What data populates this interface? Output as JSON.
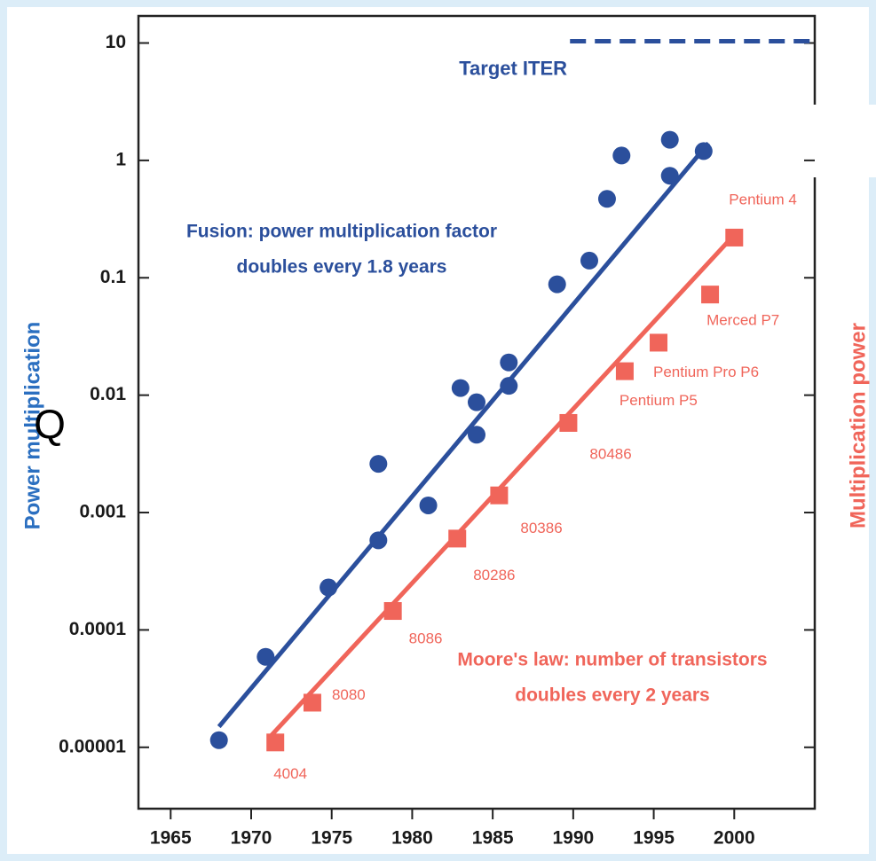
{
  "chart_data": {
    "type": "scatter",
    "log_y": true,
    "xlim": [
      1963,
      2005
    ],
    "ylim": [
      3e-06,
      17
    ],
    "xticks": [
      1965,
      1970,
      1975,
      1980,
      1985,
      1990,
      1995,
      2000
    ],
    "yticks": [
      10,
      1,
      0.1,
      0.01,
      0.001,
      0.0001,
      1e-05
    ],
    "ylabel": "Power multiplication",
    "y_symbol": "Q",
    "y2label": "Multiplication power",
    "series": [
      {
        "color": "#2b4f9c",
        "marker": "circle",
        "x": [
          1968,
          1970.9,
          1974.8,
          1977.9,
          1977.9,
          1981,
          1983,
          1984,
          1984,
          1986,
          1986,
          1989,
          1991,
          1992.1,
          1993,
          1996,
          1996,
          1998.1
        ],
        "values": [
          1.15e-05,
          5.9e-05,
          0.00023,
          0.00058,
          0.0026,
          0.00115,
          0.0115,
          0.0087,
          0.0046,
          0.019,
          0.012,
          0.088,
          0.14,
          0.47,
          1.1,
          1.5,
          0.74,
          1.2
        ]
      },
      {
        "color": "#f0655a",
        "marker": "square",
        "x": [
          1971.5,
          1973.8,
          1978.8,
          1982.8,
          1985.4,
          1989.7,
          1993.2,
          1995.3,
          1998.5,
          2000
        ],
        "values": [
          1.1e-05,
          2.4e-05,
          0.000145,
          0.0006,
          0.0014,
          0.0058,
          0.016,
          0.028,
          0.072,
          0.22
        ],
        "labels": [
          "4004",
          "8080",
          "8086",
          "80286",
          "80386",
          "80486",
          "Pentium P5",
          "Pentium Pro P6",
          "Merced P7",
          "Pentium 4"
        ]
      }
    ],
    "fits": [
      {
        "color": "#2b4f9c",
        "x": [
          1968,
          1998.4
        ],
        "values": [
          1.5e-05,
          1.4
        ]
      },
      {
        "color": "#f0655a",
        "x": [
          1971.1,
          2000.1
        ],
        "values": [
          1.2e-05,
          0.24
        ]
      }
    ],
    "reference_line": {
      "color": "#2b4f9c",
      "x": [
        1989.8,
        2005
      ],
      "value": 10,
      "label": "Target ITER"
    },
    "annotations": [
      {
        "color": "#2b4f9c",
        "lines": [
          "Fusion: power multiplication factor",
          "doubles every 1.8 years"
        ]
      },
      {
        "color": "#f0655a",
        "lines": [
          "Moore's law: number of transistors",
          "doubles every 2 years"
        ]
      }
    ]
  }
}
